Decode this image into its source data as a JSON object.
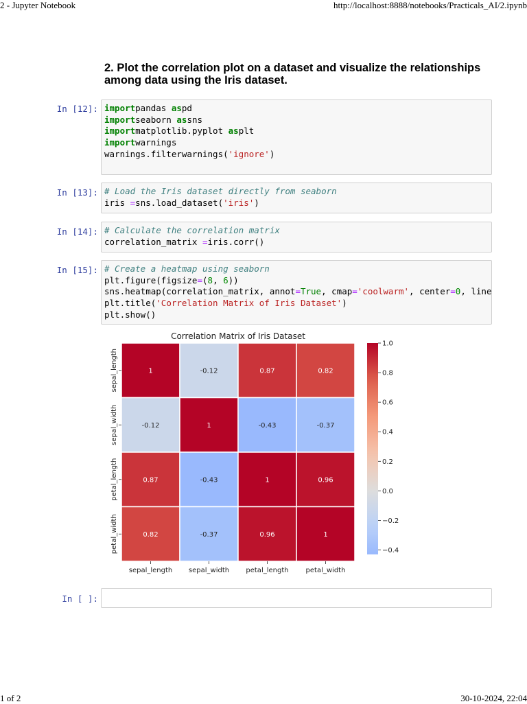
{
  "print_header": {
    "title": "2 - Jupyter Notebook",
    "url": "http://localhost:8888/notebooks/Practicals_AI/2.ipynb"
  },
  "print_footer": {
    "page": "1 of 2",
    "datetime": "30-10-2024, 22:04"
  },
  "markdown": {
    "heading": "2. Plot the correlation plot on a dataset and visualize the relationships among data using the Iris dataset."
  },
  "cells": [
    {
      "prompt": "In [12]:",
      "lines": [
        [
          [
            "kw",
            "import"
          ],
          [
            "",
            "pandas "
          ],
          [
            "kw",
            "as"
          ],
          [
            "",
            "pd"
          ]
        ],
        [
          [
            "kw",
            "import"
          ],
          [
            "",
            "seaborn "
          ],
          [
            "kw",
            "as"
          ],
          [
            "",
            "sns"
          ]
        ],
        [
          [
            "kw",
            "import"
          ],
          [
            "",
            "matplotlib.pyplot "
          ],
          [
            "kw",
            "as"
          ],
          [
            "",
            "plt"
          ]
        ],
        [
          [
            "kw",
            "import"
          ],
          [
            "",
            "warnings"
          ]
        ],
        [
          [
            "",
            "warnings.filterwarnings("
          ],
          [
            "str",
            "'ignore'"
          ],
          [
            "",
            ")"
          ]
        ]
      ]
    },
    {
      "prompt": "In [13]:",
      "lines": [
        [
          [
            "cm",
            "# Load the Iris dataset directly from seaborn"
          ]
        ],
        [
          [
            "",
            "iris "
          ],
          [
            "op",
            "="
          ],
          [
            "",
            "sns.load_dataset("
          ],
          [
            "str",
            "'iris'"
          ],
          [
            "",
            ")"
          ]
        ]
      ]
    },
    {
      "prompt": "In [14]:",
      "lines": [
        [
          [
            "cm",
            "# Calculate the correlation matrix"
          ]
        ],
        [
          [
            "",
            "correlation_matrix "
          ],
          [
            "op",
            "="
          ],
          [
            "",
            "iris.corr()"
          ]
        ]
      ]
    },
    {
      "prompt": "In [15]:",
      "lines": [
        [
          [
            "cm",
            "# Create a heatmap using seaborn"
          ]
        ],
        [
          [
            "",
            "plt.figure(figsize"
          ],
          [
            "op",
            "="
          ],
          [
            "",
            "("
          ],
          [
            "num",
            "8"
          ],
          [
            "",
            ", "
          ],
          [
            "num",
            "6"
          ],
          [
            "",
            "))"
          ]
        ],
        [
          [
            "",
            "sns.heatmap(correlation_matrix, annot"
          ],
          [
            "op",
            "="
          ],
          [
            "bi",
            "True"
          ],
          [
            "",
            ", cmap"
          ],
          [
            "op",
            "="
          ],
          [
            "str",
            "'coolwarm'"
          ],
          [
            "",
            ", center"
          ],
          [
            "op",
            "="
          ],
          [
            "num",
            "0"
          ],
          [
            "",
            ", linewid"
          ]
        ],
        [
          [
            "",
            "plt.title("
          ],
          [
            "str",
            "'Correlation Matrix of Iris Dataset'"
          ],
          [
            "",
            ")"
          ]
        ],
        [
          [
            "",
            "plt.show()"
          ]
        ]
      ]
    },
    {
      "prompt": "In [ ]:",
      "lines": []
    }
  ],
  "chart_data": {
    "type": "heatmap",
    "title": "Correlation Matrix of Iris Dataset",
    "categories": [
      "sepal_length",
      "sepal_width",
      "petal_length",
      "petal_width"
    ],
    "values": [
      [
        1,
        -0.12,
        0.87,
        0.82
      ],
      [
        -0.12,
        1,
        -0.43,
        -0.37
      ],
      [
        0.87,
        -0.43,
        1,
        0.96
      ],
      [
        0.82,
        -0.37,
        0.96,
        1
      ]
    ],
    "annotations": [
      [
        "1",
        "-0.12",
        "0.87",
        "0.82"
      ],
      [
        "-0.12",
        "1",
        "-0.43",
        "-0.37"
      ],
      [
        "0.87",
        "-0.43",
        "1",
        "0.96"
      ],
      [
        "0.82",
        "-0.37",
        "0.96",
        "1"
      ]
    ],
    "colormap": "coolwarm",
    "center": 0,
    "colorbar_range": [
      -0.43,
      1.0
    ],
    "colorbar_ticks": [
      "1.0",
      "0.8",
      "0.6",
      "0.4",
      "0.2",
      "0.0",
      "−0.2",
      "−0.4"
    ],
    "colorbar_tick_values": [
      1.0,
      0.8,
      0.6,
      0.4,
      0.2,
      0.0,
      -0.2,
      -0.4
    ]
  }
}
